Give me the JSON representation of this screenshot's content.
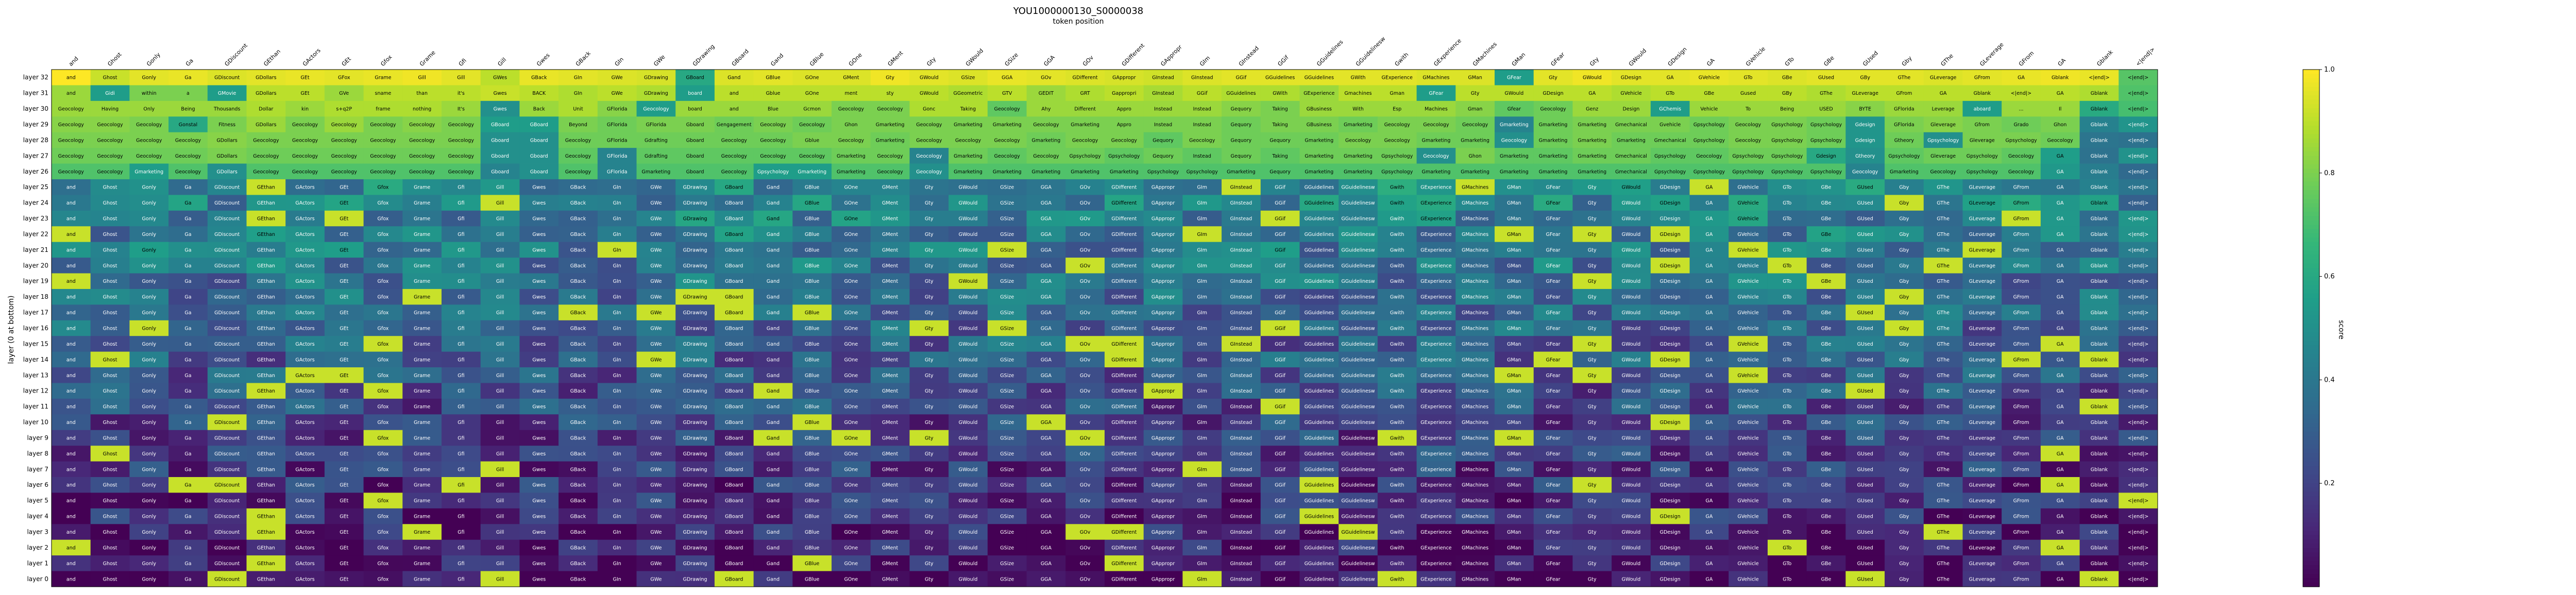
{
  "chart_data": {
    "type": "heatmap",
    "title": "YOU1000000130_S0000038",
    "xlabel": "token position",
    "ylabel": "layer (0 at bottom)",
    "colorbar_label": "score",
    "colorbar_ticks": [
      "0.2",
      "0.4",
      "0.6",
      "0.8",
      "1.0"
    ],
    "colorbar_range": [
      0.0,
      1.0
    ],
    "colormap": "viridis",
    "x_tokens": [
      "and",
      "Ghost",
      "Gonly",
      "Ga",
      "GDiscount",
      "GEthan",
      "GActors",
      "GEt",
      "Gfox",
      "Grame",
      "Gfi",
      "Gill",
      "Gwes",
      "GBack",
      "GIn",
      "GWe",
      "GDrawing",
      "GBoard",
      "Gand",
      "GBlue",
      "GOne",
      "GMent",
      "Gty",
      "GWould",
      "GSize",
      "GGA",
      "GOv",
      "GDifferent",
      "GAppropr",
      "GIm",
      "GInstead",
      "GGif",
      "GGuidelines",
      "GGuidelinesw",
      "Gwith",
      "GExperience",
      "GMachines",
      "GMan",
      "GFear",
      "Gty",
      "GWould",
      "GDesign",
      "GA",
      "GVehicle",
      "GTo",
      "GBe",
      "GUsed",
      "Gby",
      "GThe",
      "GLeverage",
      "GFrom",
      "GA",
      "Gblank",
      "<|end|>"
    ],
    "y_layers": [
      "layer 32",
      "layer 31",
      "layer 30",
      "layer 29",
      "layer 28",
      "layer 27",
      "layer 26",
      "layer 25",
      "layer 24",
      "layer 23",
      "layer 22",
      "layer 21",
      "layer 20",
      "layer 19",
      "layer 18",
      "layer 17",
      "layer 16",
      "layer 15",
      "layer 14",
      "layer 13",
      "layer 12",
      "layer 11",
      "layer 10",
      "layer 9",
      "layer 8",
      "layer 7",
      "layer 6",
      "layer 5",
      "layer 4",
      "layer 3",
      "layer 2",
      "layer 1",
      "layer 0"
    ],
    "rows": [
      {
        "layer": "layer 32",
        "cells": [
          "and",
          "Ghost",
          "Gonly",
          "Ga",
          "GDiscount",
          "GDollars",
          "GEt",
          "GFox",
          "Grame",
          "Gill",
          "Gill",
          "GWes",
          "GBack",
          "GIn",
          "GWe",
          "GDrawing",
          "GBoard",
          "Gand",
          "GBlue",
          "GOne",
          "GMent",
          "Gty",
          "GWould",
          "GSize",
          "GGA",
          "GOv",
          "GDifferent",
          "GAppropr",
          "GInstead",
          "GInstead",
          "GGif",
          "GGuidelines",
          "GGuidelines",
          "GWith",
          "GExperience",
          "GMachines",
          "GMan",
          "GFear",
          "Gty",
          "GWould",
          "GDesign",
          "GA",
          "GVehicle",
          "GTo",
          "GBe",
          "GUsed",
          "GBy",
          "GThe",
          "GLeverage",
          "GFrom",
          "GA",
          "Gblank",
          "<|end|>"
        ],
        "values": [
          1.0,
          0.92,
          0.96,
          0.97,
          0.95,
          0.96,
          0.97,
          0.96,
          0.97,
          0.98,
          0.96,
          0.9,
          0.97,
          0.96,
          0.95,
          0.94,
          0.6,
          0.95,
          0.96,
          0.95,
          0.95,
          0.98,
          0.96,
          0.95,
          0.97,
          0.96,
          0.95,
          0.94,
          0.93,
          0.95,
          0.96,
          0.96,
          0.96,
          0.96,
          0.96,
          0.95,
          0.95,
          0.55,
          0.96,
          0.98,
          0.96,
          0.96,
          0.97,
          0.96,
          0.95,
          0.96,
          0.96,
          0.96,
          0.95,
          0.96,
          0.97,
          0.98,
          0.97
        ]
      },
      {
        "layer": "layer 31",
        "cells": [
          "and",
          "Gidi",
          "within",
          "a",
          "GMovie",
          "GDollars",
          "GEt",
          "GVe",
          "sname",
          "than",
          "it's",
          "Gwes",
          "BACK",
          "GIn",
          "GWe",
          "GDrawing",
          "board",
          "and",
          "Gblue",
          "GOne",
          "ment",
          "sty",
          "GWould",
          "GGeometric",
          "GTV",
          "GEDIT",
          "GRT",
          "Gappropri",
          "GInstead",
          "GGif",
          "GGuidelines",
          "GWith",
          "GExperience",
          "Gmachines",
          "Gman",
          "GFear",
          "Gty",
          "GWould",
          "GDesign",
          "GA",
          "GVehicle",
          "GTo",
          "GBe",
          "Gused",
          "GBy",
          "GThe",
          "GLeverage",
          "GFrom",
          "GA",
          "Gblank",
          "<|end|>"
        ],
        "values": [
          0.85,
          0.55,
          0.8,
          0.8,
          0.55,
          0.9,
          0.9,
          0.85,
          0.9,
          0.9,
          0.9,
          0.92,
          0.9,
          0.88,
          0.9,
          0.88,
          0.55,
          0.9,
          0.9,
          0.9,
          0.9,
          0.9,
          0.9,
          0.88,
          0.9,
          0.85,
          0.88,
          0.9,
          0.87,
          0.9,
          0.88,
          0.88,
          0.85,
          0.9,
          0.9,
          0.55,
          0.9,
          0.9,
          0.9,
          0.9,
          0.88,
          0.9,
          0.9,
          0.9,
          0.9,
          0.88,
          0.9,
          0.9,
          0.9,
          0.9,
          0.9,
          0.9,
          0.88
        ]
      },
      {
        "layer": "layer 30",
        "cells": [
          "Geocology",
          "Having",
          "Only",
          "Being",
          "Thousands",
          "Dollar",
          "kin",
          "s+q2P",
          "frame",
          "nothing",
          "It's",
          "Gwes",
          "Back",
          "Unit",
          "GFlorida",
          "Geocology",
          "board",
          "and",
          "Blue",
          "Gcmon",
          "Geocology",
          "Geocology",
          "Gonc",
          "Taking",
          "Geocology",
          "Ahy",
          "Different",
          "Appro",
          "Instead",
          "Instead",
          "Gequory",
          "Taking",
          "GBusiness",
          "With",
          "Esp",
          "Machines",
          "Gman",
          "Gfear",
          "Geocology",
          "Genz",
          "Design",
          "GChemis",
          "Vehicle",
          "To",
          "Being",
          "USED",
          "BYTE",
          "GFlorida",
          "Leverage",
          "aboard",
          "...",
          "Il"
        ],
        "values": [
          0.85,
          0.85,
          0.85,
          0.85,
          0.85,
          0.88,
          0.85,
          0.88,
          0.88,
          0.88,
          0.85,
          0.5,
          0.85,
          0.88,
          0.82,
          0.55,
          0.85,
          0.85,
          0.85,
          0.85,
          0.8,
          0.8,
          0.88,
          0.88,
          0.75,
          0.85,
          0.85,
          0.85,
          0.85,
          0.85,
          0.82,
          0.8,
          0.85,
          0.85,
          0.85,
          0.85,
          0.82,
          0.75,
          0.78,
          0.85,
          0.85,
          0.55,
          0.85,
          0.85,
          0.85,
          0.85,
          0.82,
          0.85,
          0.85,
          0.55,
          0.85,
          0.85
        ]
      },
      {
        "layer": "layer 29",
        "cells": [
          "Geocology",
          "Geocology",
          "Geocology",
          "Gonstal",
          "Fitness",
          "GDollars",
          "Geocology",
          "Geocology",
          "Geocology",
          "Geocology",
          "Geocology",
          "GBoard",
          "GBoard",
          "Beyond",
          "GFlorida",
          "GFlorida",
          "Gboard",
          "Gengagement",
          "Geocology",
          "Geocology",
          "Ghon",
          "Gmarketing",
          "Geocology",
          "Gmarketing",
          "Gmarketing",
          "Geocology",
          "Gmarketing",
          "Appro",
          "Instead",
          "Instead",
          "Gequory",
          "Taking",
          "GBusiness",
          "Gmarketing",
          "Geocology",
          "Geocology",
          "Geocology",
          "Gmarketing",
          "Gmarketing",
          "Gmarketing",
          "Gmechanical",
          "Gvehicle",
          "Gpsychology",
          "Geocology",
          "Gpsychology",
          "Gpsychology",
          "Gdesign",
          "GFlorida",
          "Gleverage",
          "Gfrom",
          "Grado",
          "Ghon"
        ],
        "values": [
          0.82,
          0.82,
          0.8,
          0.6,
          0.8,
          0.85,
          0.8,
          0.85,
          0.8,
          0.82,
          0.8,
          0.55,
          0.55,
          0.8,
          0.78,
          0.8,
          0.8,
          0.78,
          0.8,
          0.78,
          0.8,
          0.8,
          0.8,
          0.8,
          0.8,
          0.8,
          0.8,
          0.8,
          0.8,
          0.8,
          0.78,
          0.8,
          0.8,
          0.78,
          0.8,
          0.8,
          0.78,
          0.45,
          0.78,
          0.8,
          0.8,
          0.8,
          0.78,
          0.8,
          0.8,
          0.78,
          0.52,
          0.8,
          0.82,
          0.8,
          0.78,
          0.8
        ]
      },
      {
        "layer": "layer 28",
        "cells": [
          "Geocology",
          "Geocology",
          "Geocology",
          "Geocology",
          "GDollars",
          "Geocology",
          "Geocology",
          "Geocology",
          "Geocology",
          "Geocology",
          "Geocology",
          "Gboard",
          "Gboard",
          "Geocology",
          "GFlorida",
          "Gdrafting",
          "Gboard",
          "Geocology",
          "Geocology",
          "Gblue",
          "Geocology",
          "Gmarketing",
          "Geocology",
          "Geocology",
          "Geocology",
          "Gmarketing",
          "Geocology",
          "Geocology",
          "Gequory",
          "Geocology",
          "Gequory",
          "Gequory",
          "Gmarketing",
          "Geocology",
          "Geocology",
          "Gmarketing",
          "Gmarketing",
          "Geocology",
          "Gmarketing",
          "Gmarketing",
          "Gmarketing",
          "Gmechanical",
          "Gpsychology",
          "Geocology",
          "Gpsychology",
          "Gpsychology",
          "Gdesign",
          "Gtheory",
          "Gpsychology",
          "Gleverage",
          "Gpsychology",
          "Geocology"
        ],
        "values": [
          0.8,
          0.8,
          0.8,
          0.8,
          0.82,
          0.8,
          0.8,
          0.8,
          0.8,
          0.8,
          0.8,
          0.5,
          0.5,
          0.78,
          0.78,
          0.78,
          0.78,
          0.78,
          0.78,
          0.8,
          0.8,
          0.78,
          0.8,
          0.8,
          0.8,
          0.78,
          0.8,
          0.8,
          0.75,
          0.8,
          0.78,
          0.78,
          0.78,
          0.8,
          0.8,
          0.78,
          0.78,
          0.5,
          0.78,
          0.8,
          0.78,
          0.78,
          0.78,
          0.8,
          0.8,
          0.78,
          0.52,
          0.78,
          0.5,
          0.8,
          0.8,
          0.78
        ]
      },
      {
        "layer": "layer 27",
        "cells": [
          "Geocology",
          "Geocology",
          "Geocology",
          "Geocology",
          "GDollars",
          "Geocology",
          "Geocology",
          "Geocology",
          "Geocology",
          "Geocology",
          "Geocology",
          "Gboard",
          "Gboard",
          "Geocology",
          "GFlorida",
          "Gdrafting",
          "Gboard",
          "Geocology",
          "Geocology",
          "Geocology",
          "Gmarketing",
          "Geocology",
          "Geocology",
          "Gmarketing",
          "Geocology",
          "Geocology",
          "Gpsychology",
          "Gpsychology",
          "Gequory",
          "Instead",
          "Gequory",
          "Taking",
          "Gmarketing",
          "Gmarketing",
          "Gpsychology",
          "Geocology",
          "Ghon",
          "Gmarketing",
          "Gmarketing",
          "Gmarketing",
          "Gmechanical",
          "Gpsychology",
          "Geocology",
          "Gpsychology",
          "Gpsychology",
          "Gdesign",
          "Gtheory",
          "Gpsychology",
          "Gleverage",
          "Gpsychology",
          "Geocology"
        ],
        "values": [
          0.78,
          0.78,
          0.78,
          0.78,
          0.8,
          0.78,
          0.78,
          0.78,
          0.78,
          0.78,
          0.78,
          0.5,
          0.5,
          0.75,
          0.45,
          0.75,
          0.75,
          0.75,
          0.75,
          0.75,
          0.78,
          0.78,
          0.45,
          0.78,
          0.75,
          0.78,
          0.78,
          0.75,
          0.78,
          0.75,
          0.78,
          0.75,
          0.78,
          0.78,
          0.78,
          0.5,
          0.8,
          0.75,
          0.75,
          0.78,
          0.78,
          0.75,
          0.75,
          0.78,
          0.78,
          0.6,
          0.5,
          0.75,
          0.78,
          0.78,
          0.75
        ]
      },
      {
        "layer": "layer 26",
        "cells": [
          "Geocology",
          "Geocology",
          "Gmarketing",
          "Geocology",
          "GDollars",
          "Geocology",
          "Geocology",
          "Geocology",
          "Geocology",
          "Geocology",
          "Geocology",
          "Gboard",
          "Gboard",
          "Geocology",
          "GFlorida",
          "Gmarketing",
          "Gboard",
          "Geocology",
          "Gpsychology",
          "Gmarketing",
          "Gmarketing",
          "Geocology",
          "Geocology",
          "Gmarketing",
          "Gmarketing",
          "Gmarketing",
          "Gmarketing",
          "Gmarketing",
          "Gpsychology",
          "Gpsychology",
          "Gmarketing",
          "Gequory",
          "Gmarketing",
          "Gmarketing",
          "Gpsychology",
          "Gmarketing",
          "Gmarketing",
          "Gmarketing",
          "Gmarketing",
          "Gmarketing",
          "Gmechanical",
          "Gpsychology",
          "Gpsychology",
          "Gpsychology",
          "Gpsychology",
          "Gpsychology",
          "Geocology",
          "Gmarketing",
          "Geocology",
          "Gpsychology",
          "Geocology"
        ],
        "values": [
          0.72,
          0.72,
          0.55,
          0.72,
          0.5,
          0.72,
          0.72,
          0.72,
          0.72,
          0.72,
          0.72,
          0.45,
          0.5,
          0.72,
          0.45,
          0.72,
          0.72,
          0.72,
          0.55,
          0.55,
          0.72,
          0.72,
          0.5,
          0.72,
          0.72,
          0.72,
          0.72,
          0.72,
          0.72,
          0.72,
          0.72,
          0.72,
          0.72,
          0.72,
          0.72,
          0.72,
          0.72,
          0.72,
          0.72,
          0.72,
          0.72,
          0.72,
          0.72,
          0.72,
          0.72,
          0.72,
          0.45,
          0.72,
          0.72,
          0.72,
          0.72
        ]
      }
    ]
  }
}
